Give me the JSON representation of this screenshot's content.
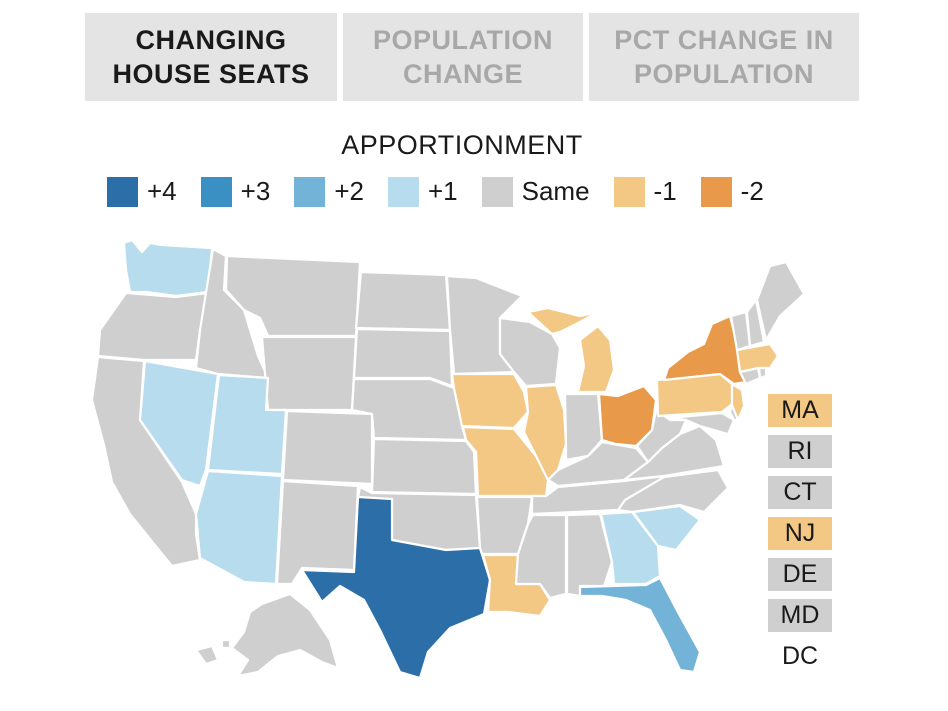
{
  "tabs": [
    {
      "label": "CHANGING HOUSE SEATS",
      "active": true
    },
    {
      "label": "POPULATION CHANGE",
      "active": false
    },
    {
      "label": "PCT CHANGE IN POPULATION",
      "active": false
    }
  ],
  "legend": {
    "title": "APPORTIONMENT",
    "items": [
      {
        "label": "+4",
        "color": "#2b6ea8"
      },
      {
        "label": "+3",
        "color": "#3a8fc3"
      },
      {
        "label": "+2",
        "color": "#74b3d8"
      },
      {
        "label": "+1",
        "color": "#b7dcee"
      },
      {
        "label": "Same",
        "color": "#cfcfcf"
      },
      {
        "label": "-1",
        "color": "#f3c784"
      },
      {
        "label": "-2",
        "color": "#e89a4a"
      }
    ]
  },
  "small_states": [
    {
      "label": "MA",
      "change": -1
    },
    {
      "label": "RI",
      "change": 0
    },
    {
      "label": "CT",
      "change": 0
    },
    {
      "label": "NJ",
      "change": -1
    },
    {
      "label": "DE",
      "change": 0
    },
    {
      "label": "MD",
      "change": 0
    },
    {
      "label": "DC",
      "change": null
    }
  ],
  "state_changes": {
    "WA": 1,
    "OR": 0,
    "CA": 0,
    "NV": 1,
    "ID": 0,
    "MT": 0,
    "WY": 0,
    "UT": 1,
    "AZ": 1,
    "CO": 0,
    "NM": 0,
    "ND": 0,
    "SD": 0,
    "NE": 0,
    "KS": 0,
    "OK": 0,
    "TX": 4,
    "MN": 0,
    "IA": -1,
    "MO": -1,
    "AR": 0,
    "LA": -1,
    "WI": 0,
    "IL": -1,
    "MS": 0,
    "MI": -1,
    "IN": 0,
    "OH": -2,
    "KY": 0,
    "TN": 0,
    "AL": 0,
    "GA": 1,
    "FL": 2,
    "SC": 1,
    "NC": 0,
    "VA": 0,
    "WV": 0,
    "PA": -1,
    "NY": -2,
    "VT": 0,
    "NH": 0,
    "ME": 0,
    "MA": -1,
    "NJ": -1,
    "AK": 0,
    "HI": 0
  }
}
